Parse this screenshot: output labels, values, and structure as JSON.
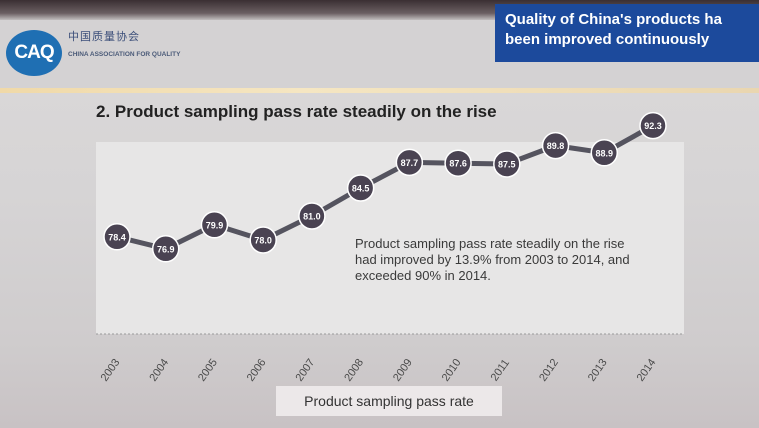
{
  "banner": {
    "text": "Quality of China's products ha\nbeen improved continuously"
  },
  "logo": {
    "abbr": "CAQ",
    "name_cn": "中国质量协会",
    "name_en": "CHINA ASSOCIATION FOR QUALITY"
  },
  "slide_title": "2. Product sampling pass rate steadily on the rise",
  "annotation": "Product sampling pass rate steadily on the rise had improved by 13.9% from 2003 to 2014, and exceeded 90% in 2014.",
  "colors": {
    "banner": "#1c4a9c",
    "line": "#55545f",
    "marker": "#4a4352",
    "logo": "#1f6fb3"
  },
  "chart_data": {
    "type": "line",
    "categories": [
      "2003",
      "2004",
      "2005",
      "2006",
      "2007",
      "2008",
      "2009",
      "2010",
      "2011",
      "2012",
      "2013",
      "2014"
    ],
    "series": [
      {
        "name": "Product sampling pass rate",
        "values": [
          78.4,
          76.9,
          79.9,
          78.0,
          81.0,
          84.5,
          87.7,
          87.6,
          87.5,
          89.8,
          88.9,
          92.3
        ],
        "labels": [
          "78.4",
          "76.9",
          "79.9",
          "78.0",
          "81.0",
          "84.5",
          "87.7",
          "87.6",
          "87.5",
          "89.8",
          "88.9",
          "92.3"
        ]
      }
    ],
    "ylim": [
      74,
      94
    ],
    "grid": false,
    "legend": "bottom"
  }
}
